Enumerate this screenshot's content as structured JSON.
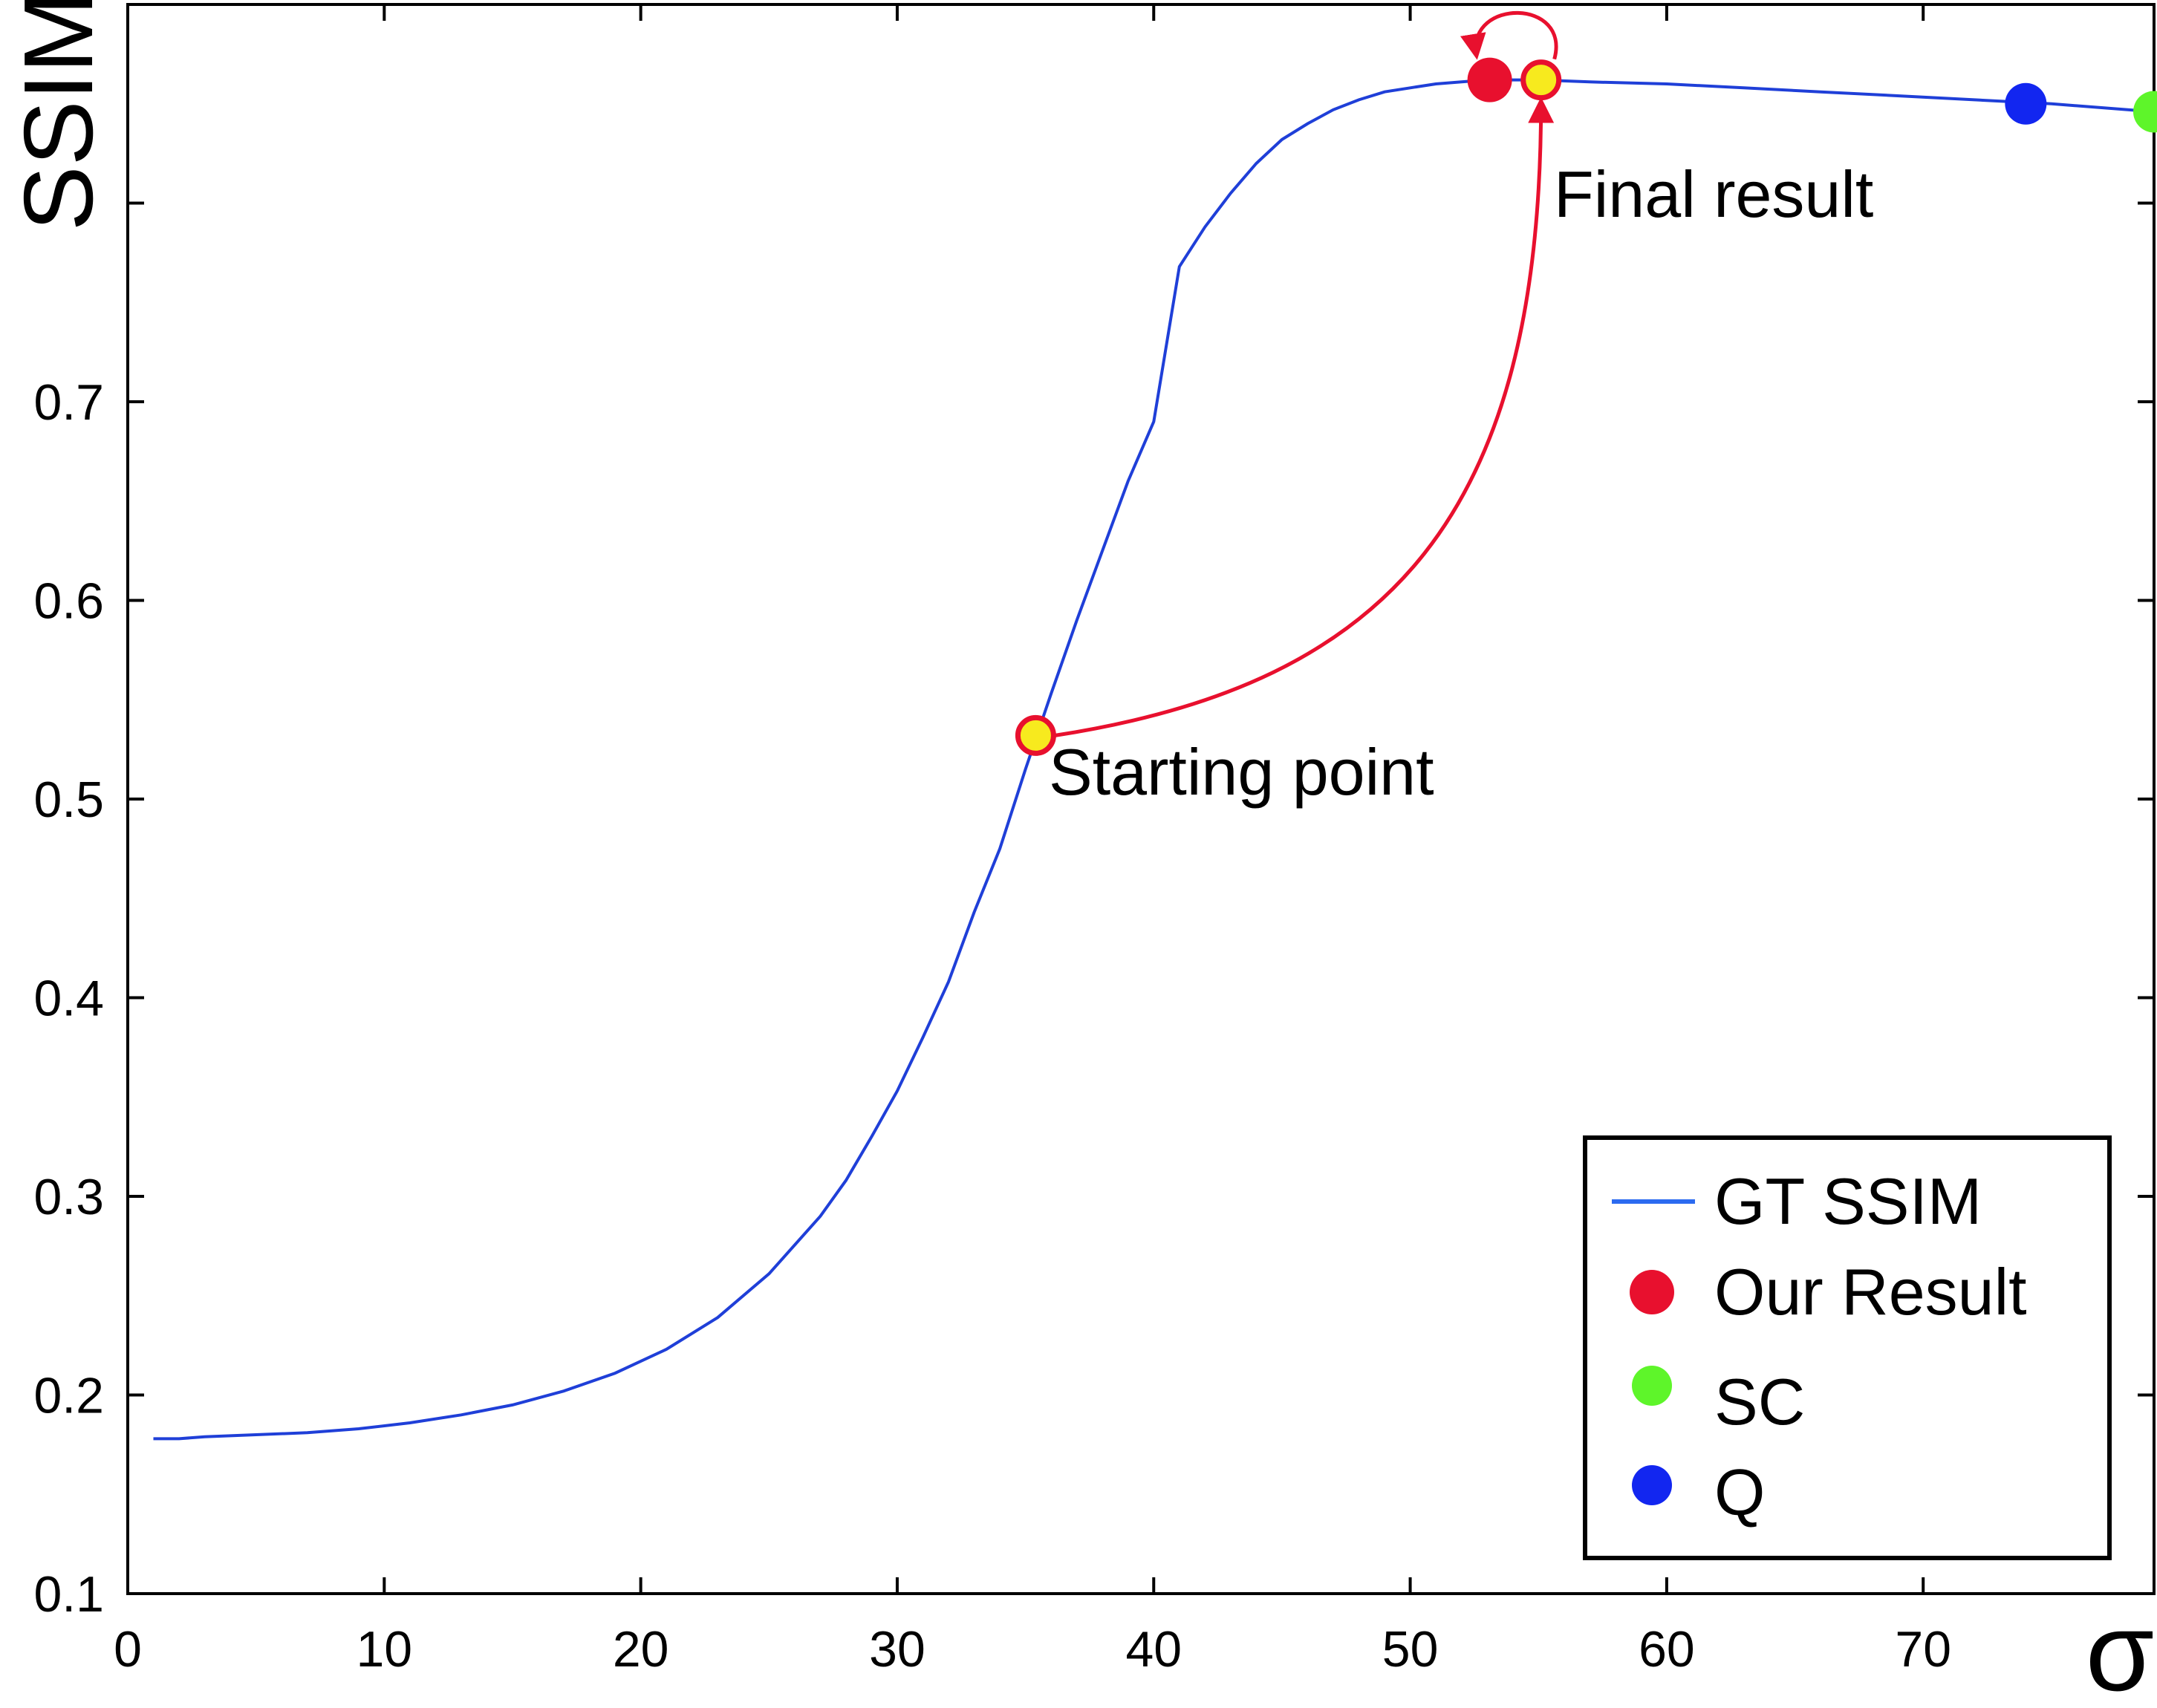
{
  "chart_data": {
    "type": "line",
    "xlabel": "σ",
    "ylabel": "SSIM",
    "xlim": [
      0,
      79
    ],
    "ylim": [
      0.1,
      0.9
    ],
    "x_ticks": [
      0,
      10,
      20,
      30,
      40,
      50,
      60,
      70
    ],
    "y_ticks": [
      0.1,
      0.2,
      0.3,
      0.4,
      0.5,
      0.6,
      0.7,
      0.8
    ],
    "y_tick_labels": [
      "0.1",
      "0.2",
      "0.3",
      "0.4",
      "0.5",
      "0.6",
      "0.7",
      ""
    ],
    "grid": false,
    "legend_position": "bottom-right",
    "series": [
      {
        "name": "GT SSIM",
        "color": "#1f3fd8",
        "x": [
          1,
          2,
          3,
          5,
          7,
          9,
          11,
          13,
          15,
          17,
          19,
          21,
          23,
          25,
          27,
          28,
          29,
          30,
          31,
          32,
          33,
          34,
          35,
          36,
          37,
          38,
          39,
          40,
          41,
          42,
          43,
          44,
          45,
          46,
          47,
          48,
          49,
          50,
          51,
          52,
          53,
          55,
          57,
          60,
          63,
          66,
          69,
          72,
          75,
          79
        ],
        "y": [
          0.178,
          0.178,
          0.179,
          0.18,
          0.181,
          0.183,
          0.186,
          0.19,
          0.195,
          0.202,
          0.211,
          0.223,
          0.239,
          0.261,
          0.29,
          0.308,
          0.33,
          0.353,
          0.38,
          0.408,
          0.443,
          0.475,
          0.515,
          0.553,
          0.59,
          0.625,
          0.66,
          0.69,
          0.768,
          0.788,
          0.805,
          0.82,
          0.832,
          0.84,
          0.847,
          0.852,
          0.856,
          0.858,
          0.86,
          0.861,
          0.862,
          0.862,
          0.861,
          0.86,
          0.858,
          0.856,
          0.854,
          0.852,
          0.85,
          0.846
        ]
      }
    ],
    "markers": [
      {
        "name": "Our Result",
        "x": 53.1,
        "y": 0.862,
        "color": "#e8102e"
      },
      {
        "name": "SC",
        "x": 79.0,
        "y": 0.846,
        "color": "#5ef52a"
      },
      {
        "name": "Q",
        "x": 74.0,
        "y": 0.85,
        "color": "#1226f0"
      }
    ],
    "iteration_points": [
      {
        "label": "Starting point",
        "x": 35.4,
        "y": 0.532
      },
      {
        "label": "Final result",
        "x": 55.1,
        "y": 0.862
      }
    ],
    "legend": [
      {
        "label": "GT SSIM",
        "kind": "line",
        "color": "#2c6bf0"
      },
      {
        "label": "Our Result",
        "kind": "dot",
        "color": "#e8102e"
      },
      {
        "label": "SC",
        "kind": "dot",
        "color": "#5ef52a"
      },
      {
        "label": "Q",
        "kind": "dot",
        "color": "#1226f0"
      }
    ],
    "colors": {
      "path": "#e8102e",
      "iter_fill": "#f7ea1e",
      "iter_stroke": "#e8102e"
    }
  }
}
